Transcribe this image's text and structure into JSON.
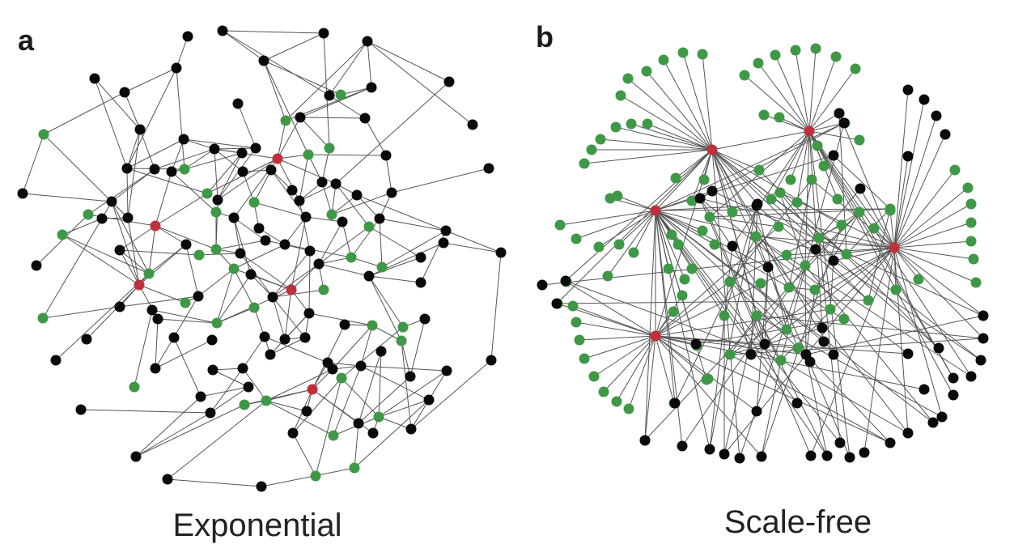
{
  "panels": [
    {
      "label": "a",
      "caption": "Exponential"
    },
    {
      "label": "b",
      "caption": "Scale-free"
    }
  ],
  "colors": {
    "hub": "#c0303a",
    "green": "#3e9845",
    "black": "#0a0a0a",
    "edge": "#555555"
  }
}
